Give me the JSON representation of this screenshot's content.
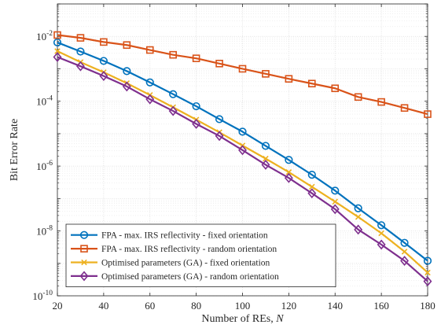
{
  "chart_data": {
    "type": "line",
    "xlabel": "Number of REs, ",
    "xlabel_var": "N",
    "ylabel": "Bit Error Rate",
    "yscale": "log",
    "xlim": [
      20,
      180
    ],
    "ylim": [
      1e-10,
      0.1
    ],
    "grid": true,
    "legend_position": "bottom-left",
    "x": [
      20,
      30,
      40,
      50,
      60,
      70,
      80,
      90,
      100,
      110,
      120,
      130,
      140,
      150,
      160,
      170,
      180
    ],
    "x_tick_labels": [
      "20",
      "40",
      "60",
      "80",
      "100",
      "120",
      "140",
      "160",
      "180"
    ],
    "y_tick_labels": [
      {
        "base": "10",
        "exp": "-2",
        "value": 0.01
      },
      {
        "base": "10",
        "exp": "-4",
        "value": 0.0001
      },
      {
        "base": "10",
        "exp": "-6",
        "value": 1e-06
      },
      {
        "base": "10",
        "exp": "-8",
        "value": 1e-08
      },
      {
        "base": "10",
        "exp": "-10",
        "value": 1e-10
      }
    ],
    "series": [
      {
        "name": "FPA - max. IRS reflectivity - fixed orientation",
        "color": "#0072BD",
        "marker": "circle",
        "values": [
          0.0065,
          0.0034,
          0.00175,
          0.00085,
          0.00038,
          0.000165,
          7e-05,
          2.8e-05,
          1.15e-05,
          4.2e-06,
          1.55e-06,
          5.4e-07,
          1.75e-07,
          5e-08,
          1.5e-08,
          4.3e-09,
          1.2e-09
        ]
      },
      {
        "name": "FPA - max. IRS reflectivity - random orientation",
        "color": "#D95319",
        "marker": "square",
        "values": [
          0.011,
          0.009,
          0.0067,
          0.0054,
          0.0038,
          0.0027,
          0.0021,
          0.00145,
          0.001,
          0.0007,
          0.00049,
          0.00035,
          0.00025,
          0.000135,
          9.5e-05,
          6.2e-05,
          4e-05
        ]
      },
      {
        "name": "Optimised parameters (GA) - fixed orientation",
        "color": "#EDB120",
        "marker": "x",
        "values": [
          0.0035,
          0.0016,
          0.00078,
          0.00036,
          0.000155,
          6.5e-05,
          2.7e-05,
          1.1e-05,
          4.3e-06,
          1.7e-06,
          6.5e-07,
          2.3e-07,
          8e-08,
          2.7e-08,
          8.5e-09,
          2.3e-09,
          5.2e-10
        ]
      },
      {
        "name": "Optimised parameters (GA) - random orientation",
        "color": "#7E2F8E",
        "marker": "diamond",
        "values": [
          0.0023,
          0.0012,
          0.0006,
          0.000285,
          0.000115,
          5e-05,
          2e-05,
          8.5e-06,
          3.1e-06,
          1.1e-06,
          4.3e-07,
          1.45e-07,
          4.7e-08,
          1.1e-08,
          3.8e-09,
          1.2e-09,
          2.8e-10
        ]
      }
    ]
  }
}
